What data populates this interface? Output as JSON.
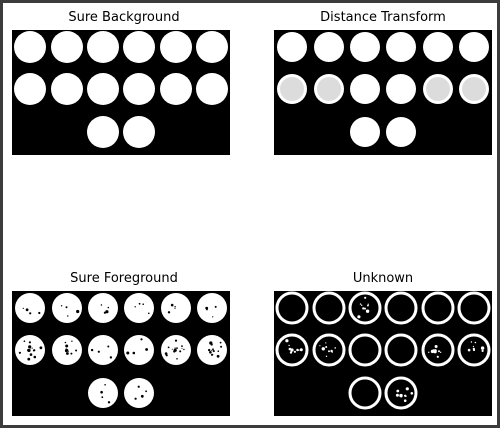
{
  "window": {
    "background": "#ffffff",
    "border": "#3c3c3c"
  },
  "subplots": [
    {
      "title": "Sure Background",
      "variant": "solid"
    },
    {
      "title": "Distance Transform",
      "variant": "gradient"
    },
    {
      "title": "Sure Foreground",
      "variant": "speckled"
    },
    {
      "title": "Unknown",
      "variant": "ring"
    }
  ],
  "coins": {
    "rows": [
      6,
      6,
      2
    ],
    "count": 14
  },
  "colors": {
    "panel": "#000000",
    "coin": "#ffffff",
    "coin_dim": "#dcdcdc"
  }
}
